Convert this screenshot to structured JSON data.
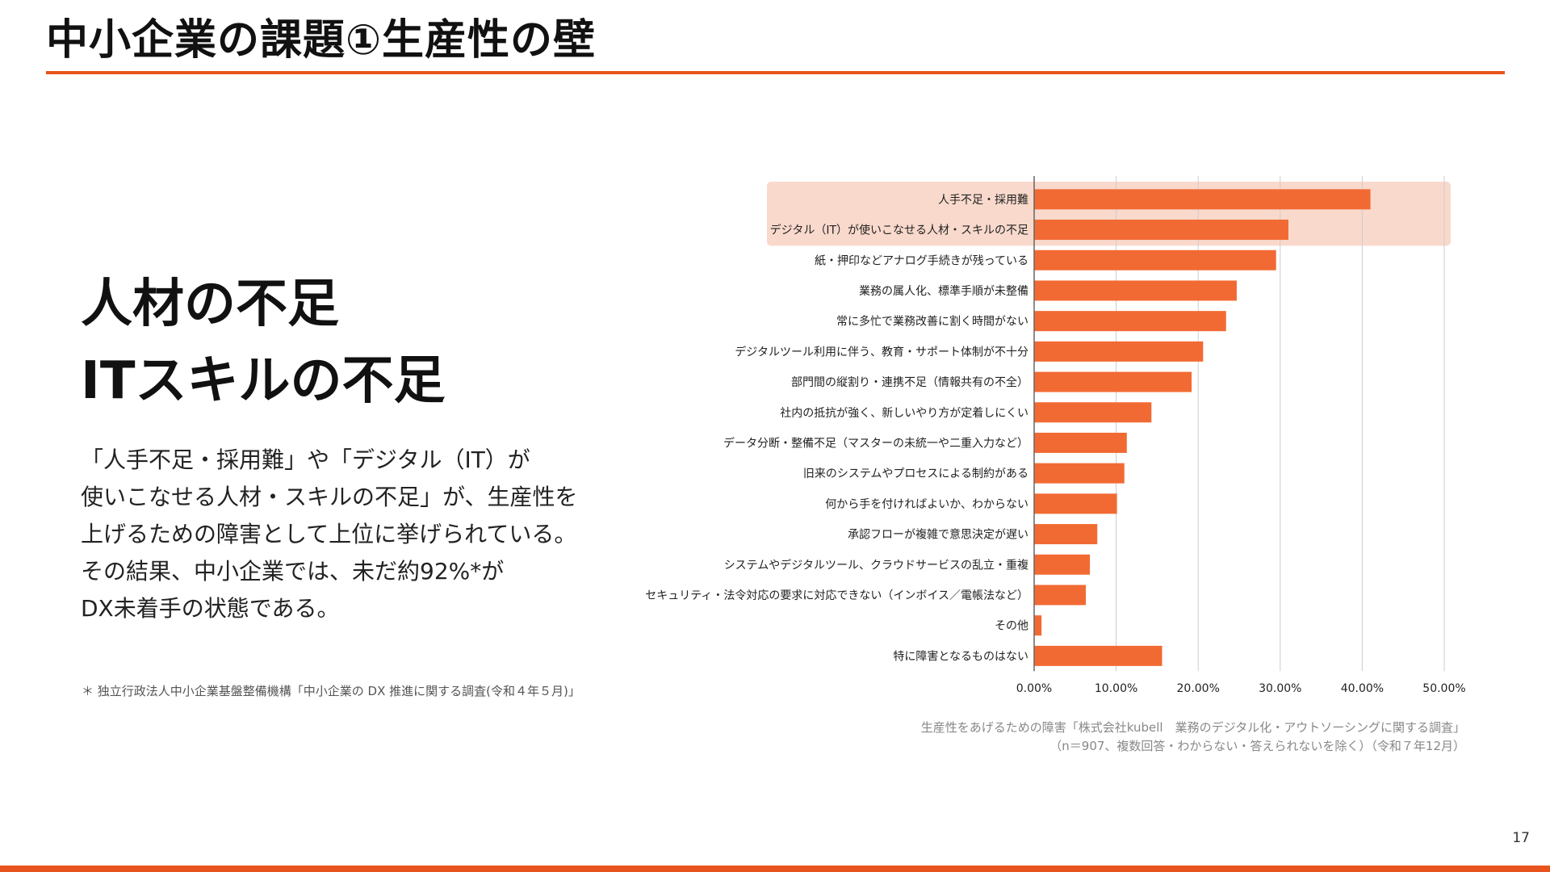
{
  "slide": {
    "title": "中小企業の課題①生産性の壁",
    "headline_lines": [
      "人材の不足",
      "ITスキルの不足"
    ],
    "body_lines": [
      "「人手不足・採用難」や「デジタル（IT）が",
      "使いこなせる人材・スキルの不足」が、生産性を",
      "上げるための障害として上位に挙げられている。",
      "その結果、中小企業では、未だ約92%*が",
      "DX未着手の状態である。"
    ],
    "footnote": "＊ 独立行政法人中小企業基盤整備機構「中小企業の DX 推進に関する調査(令和４年５月)」",
    "source_lines": [
      "生産性をあげるための障害「株式会社kubell　業務のデジタル化・アウトソーシングに関する調査」",
      "（n＝907、複数回答・わからない・答えられないを除く）（令和７年12月）"
    ],
    "page_number": "17"
  },
  "colors": {
    "accent": "#e8541d",
    "bar": "#f26a33",
    "highlight": "#f9d9cc",
    "grid": "#cccccc",
    "axis": "#666666"
  },
  "chart_data": {
    "type": "bar",
    "orientation": "horizontal",
    "categories": [
      "人手不足・採用難",
      "デジタル（IT）が使いこなせる人材・スキルの不足",
      "紙・押印などアナログ手続きが残っている",
      "業務の属人化、標準手順が未整備",
      "常に多忙で業務改善に割く時間がない",
      "デジタルツール利用に伴う、教育・サポート体制が不十分",
      "部門間の縦割り・連携不足（情報共有の不全）",
      "社内の抵抗が強く、新しいやり方が定着しにくい",
      "データ分断・整備不足（マスターの未統一や二重入力など）",
      "旧来のシステムやプロセスによる制約がある",
      "何から手を付ければよいか、わからない",
      "承認フローが複雑で意思決定が遅い",
      "システムやデジタルツール、クラウドサービスの乱立・重複",
      "セキュリティ・法令対応の要求に対応できない（インボイス／電帳法など）",
      "その他",
      "特に障害となるものはない"
    ],
    "values": [
      41.0,
      31.0,
      29.5,
      24.7,
      23.4,
      20.6,
      19.2,
      14.3,
      11.3,
      11.0,
      10.1,
      7.7,
      6.8,
      6.3,
      0.9,
      15.6
    ],
    "highlighted": [
      0,
      1
    ],
    "x_ticks": [
      "0.00%",
      "10.00%",
      "20.00%",
      "30.00%",
      "40.00%",
      "50.00%"
    ],
    "xlim": [
      0,
      50
    ],
    "grid": true,
    "legend": "none",
    "title": "",
    "xlabel": "",
    "ylabel": ""
  }
}
